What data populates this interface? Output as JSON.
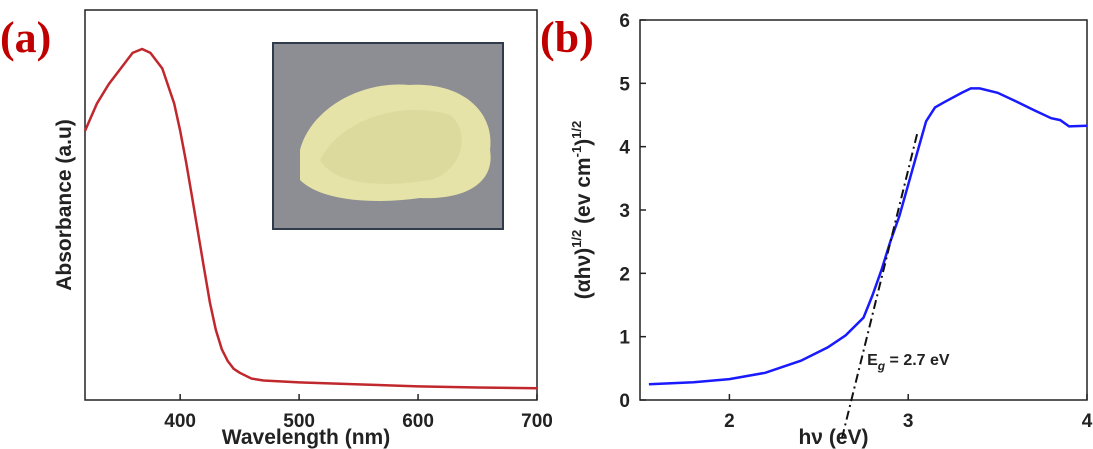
{
  "chart_data": [
    {
      "type": "line",
      "panel_label": "(a)",
      "x_label": "Wavelength (nm)",
      "y_label": "Absorbance (a.u)",
      "xlim": [
        320,
        700
      ],
      "xticks": [
        400,
        500,
        600,
        700
      ],
      "ylim": [
        0,
        1
      ],
      "series": [
        {
          "color": "#c0282d",
          "x": [
            320,
            330,
            340,
            350,
            360,
            368,
            375,
            385,
            395,
            400,
            405,
            410,
            415,
            420,
            425,
            430,
            435,
            440,
            445,
            450,
            460,
            470,
            500,
            550,
            600,
            650,
            700
          ],
          "values": [
            0.69,
            0.76,
            0.81,
            0.85,
            0.89,
            0.9,
            0.89,
            0.85,
            0.76,
            0.69,
            0.61,
            0.52,
            0.43,
            0.34,
            0.25,
            0.18,
            0.13,
            0.1,
            0.08,
            0.07,
            0.055,
            0.05,
            0.045,
            0.04,
            0.035,
            0.032,
            0.03
          ]
        }
      ]
    },
    {
      "type": "line",
      "panel_label": "(b)",
      "x_label": "hν (eV)",
      "y_label": [
        "(αhν)",
        "1/2",
        " (ev cm",
        "-1",
        ")",
        "1/2"
      ],
      "annotation": [
        "E",
        "g",
        " = 2.7 eV"
      ],
      "xlim": [
        1.5,
        4
      ],
      "xticks": [
        2,
        3,
        4
      ],
      "ylim": [
        0,
        6
      ],
      "yticks": [
        0,
        1,
        2,
        3,
        4,
        5,
        6
      ],
      "series": [
        {
          "color": "#1a1aff",
          "x": [
            1.55,
            1.8,
            2.0,
            2.2,
            2.4,
            2.55,
            2.65,
            2.75,
            2.8,
            2.85,
            2.9,
            2.95,
            3.0,
            3.05,
            3.1,
            3.15,
            3.2,
            3.3,
            3.35,
            3.4,
            3.5,
            3.6,
            3.7,
            3.8,
            3.85,
            3.9,
            4.0
          ],
          "values": [
            0.25,
            0.28,
            0.33,
            0.43,
            0.62,
            0.83,
            1.02,
            1.3,
            1.65,
            2.05,
            2.5,
            2.9,
            3.4,
            3.9,
            4.4,
            4.62,
            4.7,
            4.85,
            4.92,
            4.92,
            4.85,
            4.72,
            4.58,
            4.45,
            4.42,
            4.32,
            4.33
          ]
        },
        {
          "color": "#111111",
          "dash": true,
          "x": [
            2.63,
            3.05
          ],
          "values": [
            -0.6,
            4.2
          ]
        }
      ]
    }
  ]
}
